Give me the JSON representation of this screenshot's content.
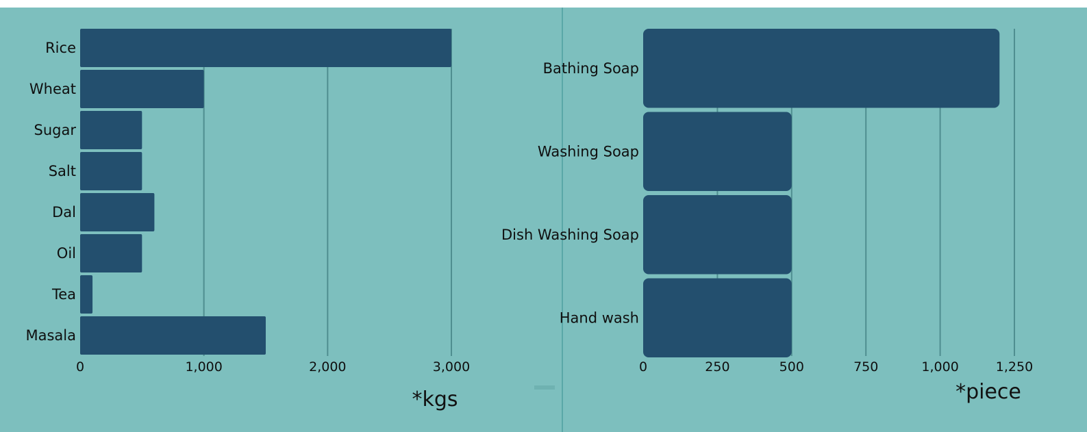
{
  "colors": {
    "background": "#7dbfbe",
    "bar": "#234f6e",
    "grid": "#4f8e90",
    "divider": "#5aa7a7"
  },
  "chart_data": [
    {
      "type": "bar",
      "orientation": "horizontal",
      "categories": [
        "Rice",
        "Wheat",
        "Sugar",
        "Salt",
        "Dal",
        "Oil",
        "Tea",
        "Masala"
      ],
      "values": [
        3000,
        1000,
        500,
        500,
        600,
        500,
        100,
        1500
      ],
      "xlim": [
        0,
        3000
      ],
      "x_ticks": [
        "0",
        "1,000",
        "2,000",
        "3,000"
      ],
      "unit_label": "*kgs",
      "grid": true
    },
    {
      "type": "bar",
      "orientation": "horizontal",
      "categories": [
        "Bathing Soap",
        "Washing Soap",
        "Dish Washing Soap",
        "Hand wash"
      ],
      "values": [
        1200,
        500,
        500,
        500
      ],
      "xlim": [
        0,
        1250
      ],
      "x_ticks": [
        "0",
        "250",
        "500",
        "750",
        "1,000",
        "1,250"
      ],
      "unit_label": "*piece",
      "grid": true
    }
  ]
}
